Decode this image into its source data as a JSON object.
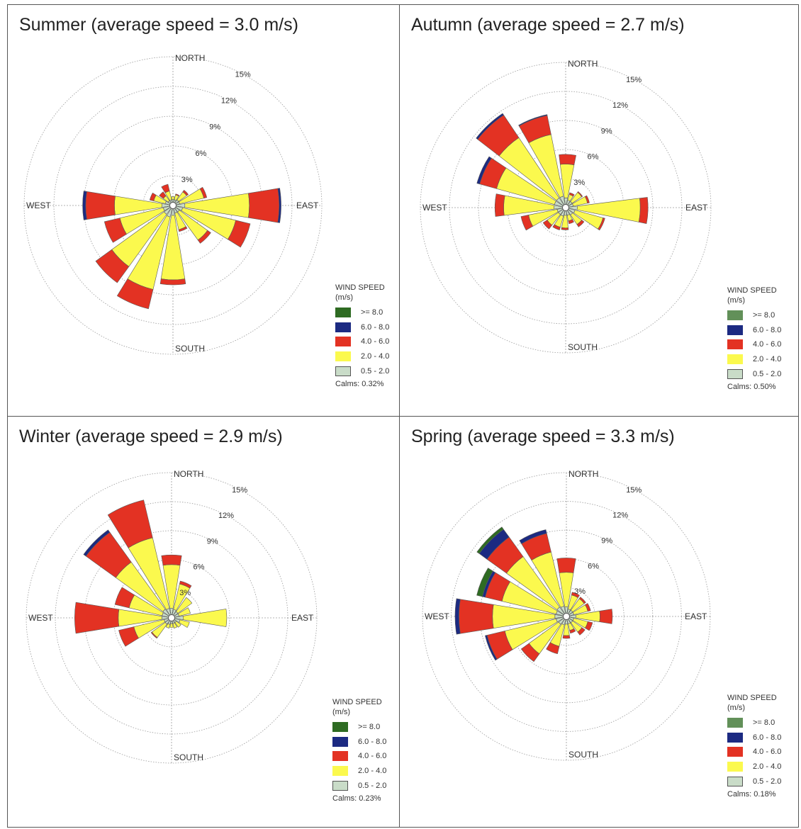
{
  "legend": {
    "title_line1": "WIND SPEED",
    "title_line2": "(m/s)",
    "items": [
      {
        "label": ">= 8.0",
        "color": "#2e6b22"
      },
      {
        "label": "6.0 - 8.0",
        "color": "#1c2a82"
      },
      {
        "label": "4.0 - 6.0",
        "color": "#e33223"
      },
      {
        "label": "2.0 - 4.0",
        "color": "#fbf94e"
      },
      {
        "label": "0.5 - 2.0",
        "color": "#c9dcc8"
      }
    ]
  },
  "chart_data": [
    {
      "type": "windrose",
      "title": "Summer (average speed = 3.0 m/s)",
      "calms": "Calms: 0.32%",
      "directions": [
        "NORTH",
        "EAST",
        "SOUTH",
        "WEST"
      ],
      "ring_labels": [
        "3%",
        "6%",
        "9%",
        "12%",
        "15%"
      ],
      "rlim": [
        0,
        15
      ],
      "speed_bins": [
        "0.5 - 2.0",
        "2.0 - 4.0",
        "4.0 - 6.0",
        "6.0 - 8.0",
        ">= 8.0"
      ],
      "series": [
        [
          0.6,
          0.3,
          0.0,
          0.0,
          0.0
        ],
        [
          0.6,
          0.5,
          0.1,
          0.0,
          0.0
        ],
        [
          0.7,
          1.0,
          0.2,
          0.0,
          0.0
        ],
        [
          0.7,
          2.5,
          0.3,
          0.0,
          0.0
        ],
        [
          1.2,
          6.5,
          3.0,
          0.2,
          0.0
        ],
        [
          1.0,
          5.5,
          1.5,
          0.0,
          0.0
        ],
        [
          0.8,
          3.5,
          0.4,
          0.0,
          0.0
        ],
        [
          0.8,
          1.7,
          0.2,
          0.0,
          0.0
        ],
        [
          1.0,
          6.5,
          0.5,
          0.0,
          0.0
        ],
        [
          1.2,
          7.5,
          2.0,
          0.0,
          0.0
        ],
        [
          1.1,
          6.5,
          2.0,
          0.0,
          0.0
        ],
        [
          1.0,
          4.5,
          1.6,
          0.0,
          0.0
        ],
        [
          1.1,
          4.8,
          2.9,
          0.3,
          0.0
        ],
        [
          0.8,
          1.2,
          0.4,
          0.0,
          0.0
        ],
        [
          0.6,
          0.6,
          0.5,
          0.0,
          0.0
        ],
        [
          0.6,
          0.9,
          0.7,
          0.0,
          0.0
        ]
      ]
    },
    {
      "type": "windrose",
      "title": "Autumn (average speed = 2.7 m/s)",
      "calms": "Calms: 0.50%",
      "directions": [
        "NORTH",
        "EAST",
        "SOUTH",
        "WEST"
      ],
      "ring_labels": [
        "3%",
        "6%",
        "9%",
        "12%",
        "15%"
      ],
      "rlim": [
        0,
        15
      ],
      "speed_bins": [
        "0.5 - 2.0",
        "2.0 - 4.0",
        "4.0 - 6.0",
        "6.0 - 8.0",
        ">= 8.0"
      ],
      "series": [
        [
          1.0,
          3.5,
          1.0,
          0.0,
          0.0
        ],
        [
          0.8,
          0.6,
          0.2,
          0.0,
          0.0
        ],
        [
          0.8,
          1.2,
          0.1,
          0.0,
          0.0
        ],
        [
          0.8,
          1.5,
          0.2,
          0.0,
          0.0
        ],
        [
          1.2,
          6.5,
          0.8,
          0.0,
          0.0
        ],
        [
          1.0,
          3.0,
          0.2,
          0.0,
          0.0
        ],
        [
          0.9,
          1.2,
          0.3,
          0.0,
          0.0
        ],
        [
          0.8,
          0.6,
          0.3,
          0.0,
          0.0
        ],
        [
          0.8,
          1.3,
          0.2,
          0.0,
          0.0
        ],
        [
          0.9,
          1.2,
          0.3,
          0.0,
          0.0
        ],
        [
          0.9,
          1.4,
          0.5,
          0.0,
          0.0
        ],
        [
          0.9,
          3.0,
          0.8,
          0.0,
          0.0
        ],
        [
          1.2,
          5.2,
          0.9,
          0.0,
          0.0
        ],
        [
          1.2,
          6.2,
          1.8,
          0.3,
          0.0
        ],
        [
          1.2,
          7.5,
          2.8,
          0.2,
          0.0
        ],
        [
          1.2,
          6.5,
          2.0,
          0.1,
          0.0
        ]
      ]
    },
    {
      "type": "windrose",
      "title": "Winter (average speed = 2.9 m/s)",
      "calms": "Calms: 0.23%",
      "directions": [
        "NORTH",
        "EAST",
        "SOUTH",
        "WEST"
      ],
      "ring_labels": [
        "3%",
        "6%",
        "9%",
        "12%",
        "15%"
      ],
      "rlim": [
        0,
        15
      ],
      "speed_bins": [
        "0.5 - 2.0",
        "2.0 - 4.0",
        "4.0 - 6.0",
        "6.0 - 8.0",
        ">= 8.0"
      ],
      "series": [
        [
          1.0,
          4.5,
          1.0,
          0.0,
          0.0
        ],
        [
          0.9,
          2.7,
          0.3,
          0.0,
          0.0
        ],
        [
          0.8,
          1.8,
          0.0,
          0.0,
          0.0
        ],
        [
          0.8,
          1.2,
          0.0,
          0.0,
          0.0
        ],
        [
          1.2,
          4.5,
          0.0,
          0.0,
          0.0
        ],
        [
          0.9,
          1.0,
          0.0,
          0.0,
          0.0
        ],
        [
          0.6,
          0.6,
          0.0,
          0.0,
          0.0
        ],
        [
          0.6,
          0.5,
          0.0,
          0.0,
          0.0
        ],
        [
          0.6,
          0.4,
          0.0,
          0.0,
          0.0
        ],
        [
          0.7,
          0.4,
          0.0,
          0.0,
          0.0
        ],
        [
          0.8,
          1.7,
          0.1,
          0.0,
          0.0
        ],
        [
          0.8,
          3.2,
          1.6,
          0.0,
          0.0
        ],
        [
          1.0,
          4.5,
          4.5,
          0.0,
          0.0
        ],
        [
          1.0,
          3.5,
          1.5,
          0.0,
          0.0
        ],
        [
          1.1,
          6.0,
          3.8,
          0.3,
          0.0
        ],
        [
          1.0,
          7.5,
          4.0,
          0.0,
          0.0
        ]
      ]
    },
    {
      "type": "windrose",
      "title": "Spring (average speed = 3.3 m/s)",
      "calms": "Calms: 0.18%",
      "directions": [
        "NORTH",
        "EAST",
        "SOUTH",
        "WEST"
      ],
      "ring_labels": [
        "3%",
        "6%",
        "9%",
        "12%",
        "15%"
      ],
      "rlim": [
        0,
        15
      ],
      "speed_bins": [
        "0.5 - 2.0",
        "2.0 - 4.0",
        "4.0 - 6.0",
        "6.0 - 8.0",
        ">= 8.0"
      ],
      "series": [
        [
          1.0,
          3.6,
          1.5,
          0.0,
          0.0
        ],
        [
          0.8,
          1.5,
          0.3,
          0.0,
          0.0
        ],
        [
          0.8,
          1.5,
          0.2,
          0.0,
          0.0
        ],
        [
          0.8,
          1.5,
          0.3,
          0.0,
          0.0
        ],
        [
          1.0,
          2.5,
          1.3,
          0.0,
          0.0
        ],
        [
          0.8,
          1.5,
          0.5,
          0.0,
          0.0
        ],
        [
          0.8,
          1.2,
          0.4,
          0.0,
          0.0
        ],
        [
          0.8,
          0.7,
          0.3,
          0.0,
          0.0
        ],
        [
          0.8,
          1.2,
          0.3,
          0.0,
          0.0
        ],
        [
          0.9,
          2.3,
          0.8,
          0.0,
          0.0
        ],
        [
          1.0,
          3.8,
          1.0,
          0.0,
          0.0
        ],
        [
          1.1,
          5.5,
          1.9,
          0.2,
          0.0
        ],
        [
          1.2,
          6.5,
          3.5,
          0.4,
          0.0
        ],
        [
          1.1,
          5.8,
          1.8,
          0.3,
          0.6
        ],
        [
          1.2,
          6.5,
          2.5,
          1.0,
          0.3
        ],
        [
          1.1,
          5.8,
          2.0,
          0.4,
          0.0
        ]
      ]
    }
  ]
}
